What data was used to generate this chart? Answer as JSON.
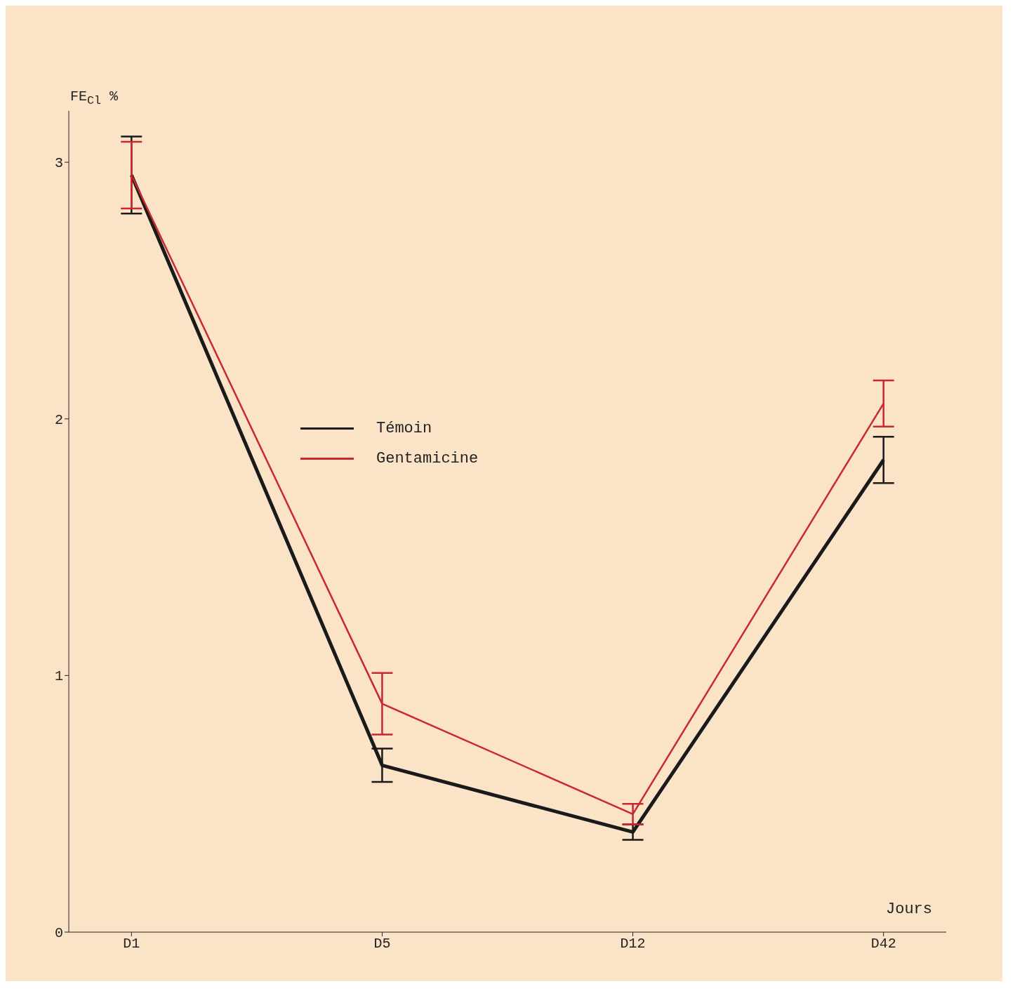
{
  "chart_data": {
    "type": "line",
    "ylabel": "FE$_{Cl}$ %",
    "xlabel": "Jours",
    "categories": [
      "D1",
      "D5",
      "D12",
      "D42"
    ],
    "series": [
      {
        "name": "Témoin",
        "color": "#1a1a1a",
        "values": [
          2.95,
          0.65,
          0.39,
          1.84
        ],
        "errors": [
          0.15,
          0.065,
          0.03,
          0.09
        ]
      },
      {
        "name": "Gentamicine",
        "color": "#c8282e",
        "values": [
          2.95,
          0.89,
          0.46,
          2.06
        ],
        "errors": [
          0.13,
          0.12,
          0.04,
          0.09
        ]
      }
    ],
    "ylim": [
      0,
      3.2
    ],
    "yticks": [
      0,
      1,
      2,
      3
    ],
    "legend": "center",
    "marker": "none",
    "line_style": "solid"
  }
}
